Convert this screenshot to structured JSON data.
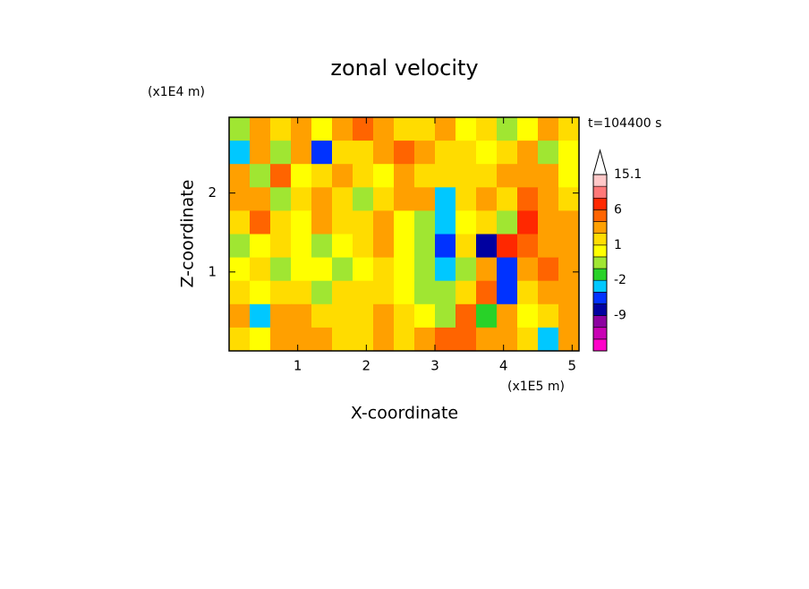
{
  "chart_data": {
    "type": "contour",
    "title": "zonal velocity",
    "x_label": "X-coordinate",
    "y_label": "Z-coordinate",
    "x_unit": "(x1E5 m)",
    "y_unit": "(x1E4 m)",
    "annotation": "t=104400 s",
    "xlim": [
      0,
      5.1
    ],
    "xticks": [
      1,
      2,
      3,
      4,
      5
    ],
    "ylim": [
      0,
      2.96
    ],
    "yticks": [
      1,
      2
    ],
    "values": [
      [
        -1,
        2,
        1,
        3,
        0,
        2,
        4,
        3,
        1,
        1,
        2,
        0,
        1,
        -1,
        0,
        2,
        1
      ],
      [
        -3,
        3,
        -1,
        2,
        -6,
        1,
        1,
        2,
        4,
        2,
        1,
        1,
        0,
        1,
        2,
        -1,
        0
      ],
      [
        2,
        -1,
        4,
        0,
        1,
        2,
        1,
        0,
        2,
        1,
        1,
        1,
        1,
        2,
        3,
        2,
        0
      ],
      [
        3,
        2,
        -1,
        1,
        2,
        1,
        -1,
        1,
        2,
        3,
        -4,
        1,
        2,
        1,
        4,
        3,
        1
      ],
      [
        1,
        4,
        1,
        0,
        2,
        1,
        1,
        2,
        0,
        -1,
        -3,
        0,
        1,
        -1,
        6,
        3,
        2
      ],
      [
        -1,
        0,
        1,
        0,
        -1,
        0,
        1,
        2,
        0,
        -1,
        -5,
        1,
        -8,
        8,
        4,
        3,
        2
      ],
      [
        0,
        1,
        -1,
        0,
        0,
        -1,
        0,
        1,
        0,
        -1,
        -3,
        -1,
        2,
        -6,
        3,
        4,
        3
      ],
      [
        1,
        0,
        1,
        1,
        -1,
        1,
        1,
        1,
        0,
        -1,
        -1,
        1,
        4,
        -5,
        1,
        2,
        3
      ],
      [
        2,
        -3,
        2,
        2,
        1,
        1,
        1,
        2,
        1,
        0,
        -1,
        4,
        -2,
        3,
        0,
        1,
        2
      ],
      [
        1,
        0,
        2,
        2,
        2,
        1,
        1,
        2,
        1,
        2,
        4,
        5,
        3,
        2,
        1,
        -4,
        2
      ]
    ],
    "colorbar": {
      "boundaries": [
        -18,
        -15,
        -12,
        -9,
        -6,
        -4,
        -2,
        -1,
        0,
        1,
        2,
        4,
        6,
        9,
        12,
        15.1
      ],
      "colors": [
        "#ff00c8",
        "#c800b4",
        "#8c00a0",
        "#0000a0",
        "#0032ff",
        "#00c8ff",
        "#28d228",
        "#a0e632",
        "#ffff00",
        "#ffdc00",
        "#ffa000",
        "#ff6400",
        "#ff2800",
        "#ff7878",
        "#ffc8c8"
      ],
      "ticks": [
        15.1,
        6,
        1,
        -2,
        -9
      ]
    }
  }
}
